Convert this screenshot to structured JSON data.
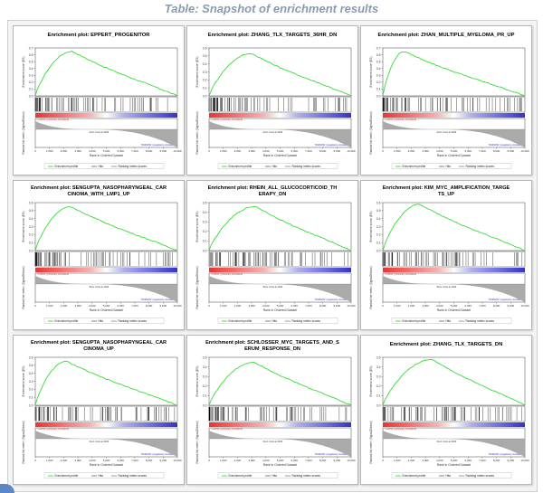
{
  "page_title": "Table: Snapshot of enrichment results",
  "common": {
    "plot_prefix": "Enrichment plot:",
    "es_axis_label": "Enrichment score (ES)",
    "rank_axis_label": "Ranked list metric (Signal2Noise)",
    "x_axis_label": "Rank in Ordered Dataset",
    "pos_label": "'LOW45' (positively correlated)",
    "neg_label": "'NSMHTE' (negatively correlated)",
    "zero_cross": "Zero cross at 4024",
    "legend": [
      "Enrichment profile",
      "Hits",
      "Ranking metric scores"
    ],
    "x_ticks": [
      "0",
      "1,000",
      "2,000",
      "3,000",
      "4,000",
      "5,000",
      "6,000",
      "7,000",
      "8,000",
      "9,000",
      "10,000"
    ],
    "colors": {
      "profile": "#33dd33",
      "hits": "#000000",
      "pos": "#ee3333",
      "neg": "#3333cc",
      "metric": "#aaaaaa"
    }
  },
  "chart_data": [
    {
      "type": "line",
      "title": "EPPERT_PROGENITOR",
      "ylim": [
        0.0,
        0.7
      ],
      "peak": [
        2600,
        0.65
      ],
      "end": 0.0,
      "y_ticks": [
        "0.0",
        "0.1",
        "0.2",
        "0.3",
        "0.4",
        "0.5",
        "0.6",
        "0.7"
      ]
    },
    {
      "type": "line",
      "title": "ZHANG_TLX_TARGETS_36HR_DN",
      "ylim": [
        0.0,
        0.6
      ],
      "peak": [
        3000,
        0.53
      ],
      "end": 0.0,
      "y_ticks": [
        "0.0",
        "0.1",
        "0.2",
        "0.3",
        "0.4",
        "0.5",
        "0.6"
      ]
    },
    {
      "type": "line",
      "title": "ZHAN_MULTIPLE_MYELOMA_PR_UP",
      "ylim": [
        0.0,
        0.7
      ],
      "peak": [
        1500,
        0.65
      ],
      "end": 0.0,
      "y_ticks": [
        "0.0",
        "0.1",
        "0.2",
        "0.3",
        "0.4",
        "0.5",
        "0.6",
        "0.7"
      ]
    },
    {
      "type": "line",
      "title": "SENGUPTA_NASOPHARYNGEAL_CARCINOMA_WITH_LMP1_UP",
      "ylim": [
        0.0,
        0.6
      ],
      "peak": [
        2500,
        0.55
      ],
      "end": 0.0,
      "y_ticks": [
        "0.0",
        "0.1",
        "0.2",
        "0.3",
        "0.4",
        "0.5",
        "0.6"
      ]
    },
    {
      "type": "line",
      "title": "RHEIN_ALL_GLUCOCORTICOID_THERAPY_DN",
      "ylim": [
        0.0,
        0.5
      ],
      "peak": [
        3300,
        0.46
      ],
      "end": 0.0,
      "y_ticks": [
        "0.0",
        "0.1",
        "0.2",
        "0.3",
        "0.4",
        "0.5"
      ]
    },
    {
      "type": "line",
      "title": "KIM_MYC_AMPLIFICATION_TARGETS_UP",
      "ylim": [
        0.0,
        0.6
      ],
      "peak": [
        2600,
        0.58
      ],
      "end": 0.0,
      "y_ticks": [
        "0.0",
        "0.1",
        "0.2",
        "0.3",
        "0.4",
        "0.5",
        "0.6"
      ]
    },
    {
      "type": "line",
      "title": "SENGUPTA_NASOPHARYNGEAL_CARCINOMA_UP",
      "ylim": [
        0.0,
        0.6
      ],
      "peak": [
        2200,
        0.55
      ],
      "end": 0.0,
      "y_ticks": [
        "0.0",
        "0.1",
        "0.2",
        "0.3",
        "0.4",
        "0.5",
        "0.6"
      ]
    },
    {
      "type": "line",
      "title": "SCHLOSSER_MYC_TARGETS_AND_SERUM_RESPONSE_DN",
      "ylim": [
        0.0,
        0.5
      ],
      "peak": [
        3200,
        0.45
      ],
      "end": 0.0,
      "y_ticks": [
        "0.0",
        "0.1",
        "0.2",
        "0.3",
        "0.4",
        "0.5"
      ]
    },
    {
      "type": "line",
      "title": "ZHANG_TLX_TARGETS_DN",
      "ylim": [
        0.0,
        0.5
      ],
      "peak": [
        3500,
        0.48
      ],
      "end": 0.0,
      "y_ticks": [
        "0.0",
        "0.1",
        "0.2",
        "0.3",
        "0.4",
        "0.5"
      ]
    }
  ]
}
